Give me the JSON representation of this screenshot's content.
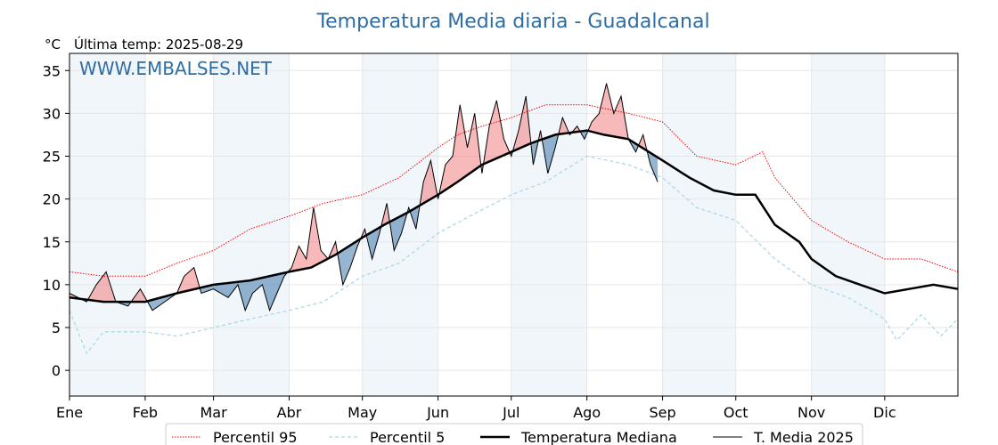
{
  "title": "Temperatura Media diaria - Guadalcanal",
  "unit": "°C",
  "subtitle": "Última temp: 2025-08-29",
  "watermark": "WWW.EMBALSES.NET",
  "colors": {
    "p95": "#ff0000",
    "p5": "#add8e6",
    "median": "#000000",
    "current": "#000000",
    "above": "#f08080",
    "below": "#4f83b3",
    "band": "#f1f6fb",
    "title": "#2e6da4"
  },
  "chart_data": {
    "type": "line",
    "title": "Temperatura Media diaria - Guadalcanal",
    "ylabel": "°C",
    "ylim": [
      -3,
      37
    ],
    "yticks": [
      0,
      5,
      10,
      15,
      20,
      25,
      30,
      35
    ],
    "xlim": [
      1,
      365
    ],
    "x_ticks": [
      {
        "label": "Ene",
        "day": 1
      },
      {
        "label": "Feb",
        "day": 32
      },
      {
        "label": "Mar",
        "day": 60
      },
      {
        "label": "Abr",
        "day": 91
      },
      {
        "label": "May",
        "day": 121
      },
      {
        "label": "Jun",
        "day": 152
      },
      {
        "label": "Jul",
        "day": 182
      },
      {
        "label": "Ago",
        "day": 213
      },
      {
        "label": "Sep",
        "day": 244
      },
      {
        "label": "Oct",
        "day": 274
      },
      {
        "label": "Nov",
        "day": 305
      },
      {
        "label": "Dic",
        "day": 335
      }
    ],
    "grid": true,
    "legend_position": "bottom",
    "series": [
      {
        "name": "Percentil 95",
        "style": "dotted-red",
        "points": [
          [
            1,
            11.5
          ],
          [
            15,
            11
          ],
          [
            32,
            11
          ],
          [
            45,
            12.5
          ],
          [
            60,
            14
          ],
          [
            75,
            16.5
          ],
          [
            91,
            18
          ],
          [
            105,
            19.5
          ],
          [
            121,
            20.5
          ],
          [
            136,
            22.5
          ],
          [
            152,
            26
          ],
          [
            160,
            27.5
          ],
          [
            170,
            28.5
          ],
          [
            182,
            29.5
          ],
          [
            196,
            31
          ],
          [
            213,
            31
          ],
          [
            230,
            30
          ],
          [
            244,
            29
          ],
          [
            258,
            25
          ],
          [
            274,
            24
          ],
          [
            285,
            25.5
          ],
          [
            290,
            22.5
          ],
          [
            305,
            17.5
          ],
          [
            320,
            15
          ],
          [
            335,
            13
          ],
          [
            350,
            13
          ],
          [
            365,
            11.5
          ]
        ]
      },
      {
        "name": "Percentil 5",
        "style": "dashed-lightblue",
        "points": [
          [
            1,
            7
          ],
          [
            8,
            2
          ],
          [
            15,
            4.5
          ],
          [
            32,
            4.5
          ],
          [
            45,
            4
          ],
          [
            60,
            5
          ],
          [
            75,
            6
          ],
          [
            91,
            7
          ],
          [
            105,
            8
          ],
          [
            121,
            11
          ],
          [
            136,
            12.5
          ],
          [
            152,
            16
          ],
          [
            165,
            18
          ],
          [
            182,
            20.5
          ],
          [
            196,
            22
          ],
          [
            213,
            25
          ],
          [
            230,
            24
          ],
          [
            244,
            22.5
          ],
          [
            258,
            19
          ],
          [
            274,
            17.5
          ],
          [
            290,
            13
          ],
          [
            305,
            10
          ],
          [
            320,
            8.5
          ],
          [
            335,
            6
          ],
          [
            340,
            3.5
          ],
          [
            350,
            6.5
          ],
          [
            358,
            4
          ],
          [
            365,
            6
          ]
        ]
      },
      {
        "name": "Temperatura Mediana",
        "style": "thick-black",
        "points": [
          [
            1,
            8.5
          ],
          [
            15,
            8
          ],
          [
            32,
            8
          ],
          [
            45,
            9
          ],
          [
            60,
            10
          ],
          [
            75,
            10.5
          ],
          [
            91,
            11.5
          ],
          [
            100,
            12
          ],
          [
            110,
            13.5
          ],
          [
            121,
            15.5
          ],
          [
            130,
            17
          ],
          [
            140,
            18.5
          ],
          [
            152,
            20.5
          ],
          [
            160,
            22
          ],
          [
            170,
            24
          ],
          [
            182,
            25.5
          ],
          [
            190,
            26.5
          ],
          [
            200,
            27.5
          ],
          [
            213,
            28
          ],
          [
            220,
            27.5
          ],
          [
            230,
            27
          ],
          [
            244,
            24.5
          ],
          [
            255,
            22.5
          ],
          [
            265,
            21
          ],
          [
            274,
            20.5
          ],
          [
            282,
            20.5
          ],
          [
            290,
            17
          ],
          [
            300,
            15
          ],
          [
            305,
            13
          ],
          [
            315,
            11
          ],
          [
            325,
            10
          ],
          [
            335,
            9
          ],
          [
            345,
            9.5
          ],
          [
            355,
            10
          ],
          [
            365,
            9.5
          ]
        ]
      },
      {
        "name": "T. Media 2025",
        "style": "thin-black",
        "points": [
          [
            1,
            9
          ],
          [
            8,
            8
          ],
          [
            12,
            10
          ],
          [
            16,
            11.5
          ],
          [
            20,
            8
          ],
          [
            25,
            7.5
          ],
          [
            30,
            9.5
          ],
          [
            35,
            7
          ],
          [
            40,
            8
          ],
          [
            45,
            9
          ],
          [
            48,
            11
          ],
          [
            52,
            12
          ],
          [
            55,
            9
          ],
          [
            60,
            9.5
          ],
          [
            66,
            8.5
          ],
          [
            70,
            10
          ],
          [
            73,
            7
          ],
          [
            76,
            9
          ],
          [
            80,
            10
          ],
          [
            83,
            7
          ],
          [
            86,
            9
          ],
          [
            89,
            11
          ],
          [
            92,
            12
          ],
          [
            95,
            14.5
          ],
          [
            98,
            13
          ],
          [
            101,
            19
          ],
          [
            104,
            14
          ],
          [
            107,
            13
          ],
          [
            110,
            15
          ],
          [
            113,
            10
          ],
          [
            116,
            12
          ],
          [
            119,
            14.5
          ],
          [
            122,
            16.5
          ],
          [
            125,
            13
          ],
          [
            128,
            16
          ],
          [
            131,
            19.5
          ],
          [
            134,
            14
          ],
          [
            137,
            16
          ],
          [
            140,
            19
          ],
          [
            143,
            16.5
          ],
          [
            146,
            22
          ],
          [
            149,
            24.5
          ],
          [
            152,
            20
          ],
          [
            155,
            24
          ],
          [
            158,
            25
          ],
          [
            161,
            31
          ],
          [
            164,
            26
          ],
          [
            167,
            30
          ],
          [
            170,
            23
          ],
          [
            173,
            28.5
          ],
          [
            176,
            31.5
          ],
          [
            179,
            27
          ],
          [
            182,
            25
          ],
          [
            185,
            28
          ],
          [
            188,
            32
          ],
          [
            191,
            24
          ],
          [
            194,
            28
          ],
          [
            197,
            23
          ],
          [
            200,
            26
          ],
          [
            203,
            29.5
          ],
          [
            206,
            27.5
          ],
          [
            209,
            28.5
          ],
          [
            212,
            27
          ],
          [
            215,
            29
          ],
          [
            218,
            30
          ],
          [
            221,
            33.5
          ],
          [
            224,
            30
          ],
          [
            227,
            32
          ],
          [
            230,
            27
          ],
          [
            233,
            25.5
          ],
          [
            236,
            27.5
          ],
          [
            239,
            24
          ],
          [
            242,
            22
          ]
        ]
      }
    ],
    "legend": [
      "Percentil 95",
      "Percentil 5",
      "Temperatura Mediana",
      "T. Media 2025"
    ]
  }
}
